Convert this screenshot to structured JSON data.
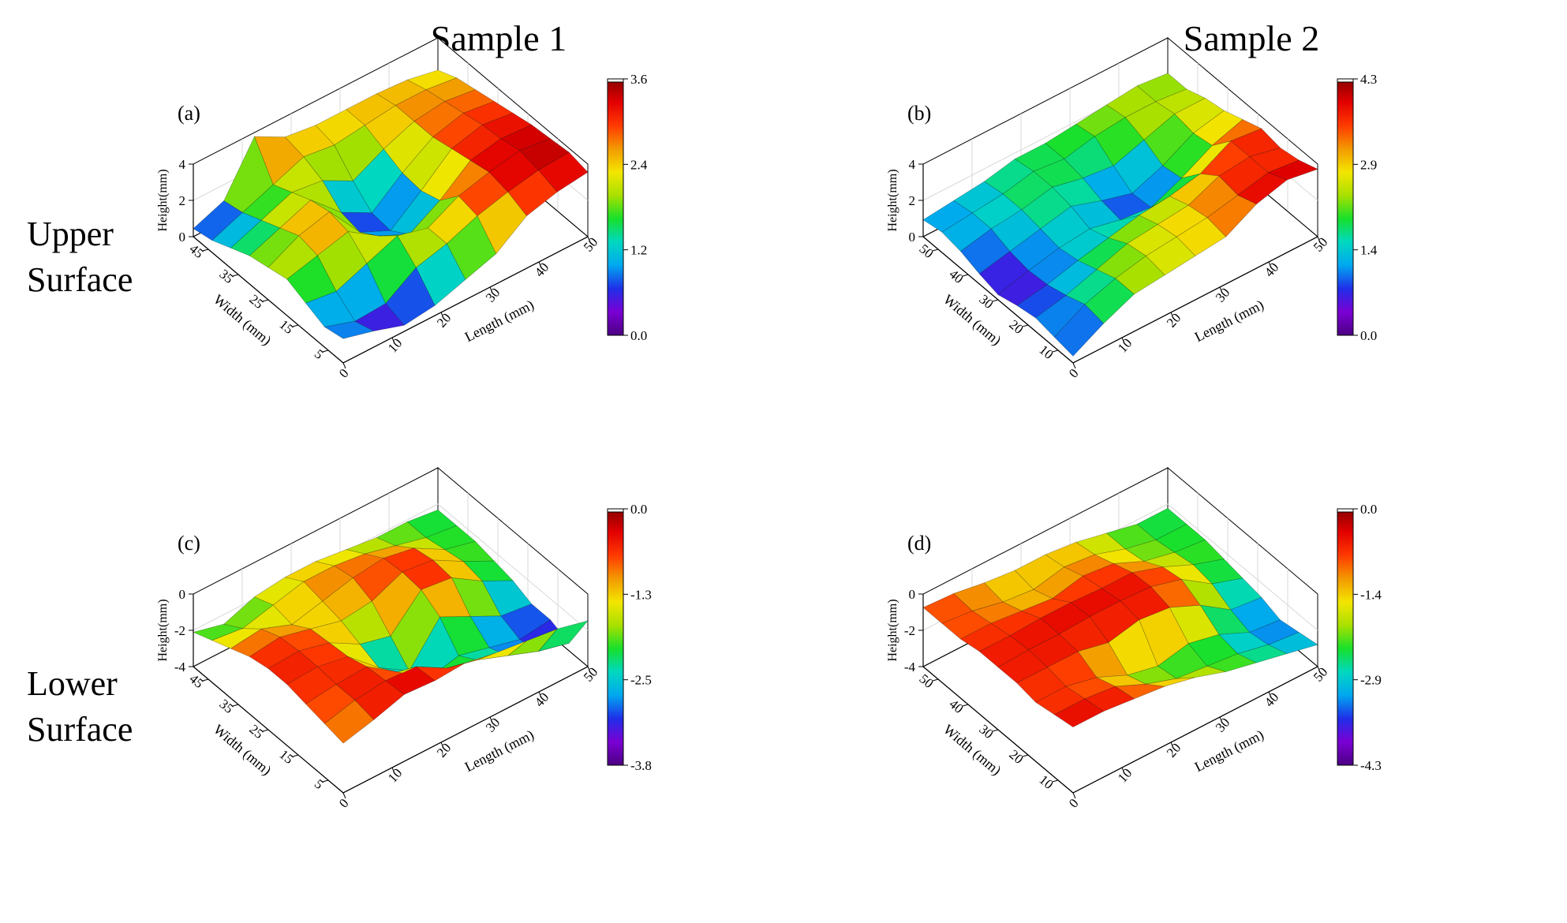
{
  "column_titles": [
    "Sample 1",
    "Sample 2"
  ],
  "row_labels": [
    [
      "Upper",
      "Surface"
    ],
    [
      "Lower",
      "Surface"
    ]
  ],
  "colormap_stops": [
    "#4b0082",
    "#7b00d4",
    "#1f2fe8",
    "#00a8f0",
    "#00d8c0",
    "#18e02a",
    "#a8e000",
    "#f3e600",
    "#f39a00",
    "#ff3a00",
    "#e20000",
    "#8a0000"
  ],
  "chart_data": [
    {
      "type": "heatmap",
      "panel_label": "(a)",
      "sample": "Sample 1",
      "surface": "Upper Surface",
      "xlabel": "Length (mm)",
      "ylabel": "Width (mm)",
      "zlabel": "Height(mm)",
      "x_ticks": [
        "0",
        "10",
        "20",
        "30",
        "40",
        "50"
      ],
      "y_ticks": [
        "5",
        "15",
        "25",
        "35",
        "45"
      ],
      "z_ticks": [
        "0",
        "2",
        "4"
      ],
      "colorbar_ticks": [
        "3.6",
        "2.4",
        "1.2",
        "0.0"
      ],
      "zlim": [
        0.0,
        3.6
      ],
      "xlim": [
        0,
        50
      ],
      "ylim": [
        0,
        50
      ],
      "height_grid": [
        [
          1.2,
          0.8,
          0.3,
          0.5,
          1.0,
          1.5,
          2.6,
          3.0,
          3.2
        ],
        [
          1.0,
          0.5,
          0.6,
          1.6,
          2.0,
          2.6,
          3.0,
          3.3,
          3.4
        ],
        [
          1.4,
          1.2,
          1.8,
          2.4,
          2.0,
          2.8,
          3.2,
          3.5,
          3.3
        ],
        [
          1.8,
          2.2,
          2.6,
          1.6,
          0.9,
          1.8,
          3.0,
          3.3,
          3.2
        ],
        [
          1.6,
          2.4,
          2.8,
          1.0,
          0.3,
          1.5,
          2.8,
          3.2,
          3.0
        ],
        [
          1.4,
          2.0,
          2.6,
          1.2,
          0.4,
          1.6,
          2.6,
          3.0,
          2.8
        ],
        [
          1.0,
          1.6,
          2.2,
          2.0,
          1.2,
          2.0,
          2.6,
          2.8,
          2.6
        ],
        [
          0.6,
          1.2,
          1.8,
          2.4,
          2.2,
          2.4,
          2.6,
          2.6,
          2.4
        ],
        [
          0.4,
          1.0,
          3.4,
          2.6,
          2.4,
          2.4,
          2.4,
          2.3,
          2.0
        ]
      ]
    },
    {
      "type": "heatmap",
      "panel_label": "(b)",
      "sample": "Sample 2",
      "surface": "Upper Surface",
      "xlabel": "Length (mm)",
      "ylabel": "Width (mm)",
      "zlabel": "Height(mm)",
      "x_ticks": [
        "0",
        "10",
        "20",
        "30",
        "40",
        "50"
      ],
      "y_ticks": [
        "10",
        "20",
        "30",
        "40",
        "50"
      ],
      "z_ticks": [
        "0",
        "2",
        "4"
      ],
      "colorbar_ticks": [
        "4.3",
        "2.9",
        "1.4",
        "0.0"
      ],
      "zlim": [
        0.0,
        4.3
      ],
      "xlim": [
        0,
        50
      ],
      "ylim": [
        0,
        50
      ],
      "height_grid": [
        [
          0.4,
          1.4,
          2.2,
          2.4,
          2.6,
          2.8,
          3.8,
          4.3,
          4.0
        ],
        [
          0.6,
          1.6,
          2.2,
          2.6,
          2.8,
          3.0,
          3.4,
          3.8,
          3.6
        ],
        [
          0.8,
          1.2,
          1.8,
          2.4,
          2.6,
          2.8,
          3.6,
          3.8,
          3.4
        ],
        [
          0.6,
          0.9,
          1.4,
          1.8,
          2.2,
          2.4,
          2.8,
          3.8,
          3.6
        ],
        [
          0.3,
          0.8,
          1.2,
          1.4,
          1.0,
          0.8,
          1.6,
          2.6,
          3.2
        ],
        [
          0.6,
          1.0,
          1.4,
          1.8,
          1.2,
          0.7,
          1.4,
          2.4,
          2.8
        ],
        [
          1.0,
          1.4,
          1.6,
          2.0,
          1.6,
          1.4,
          2.0,
          2.6,
          2.6
        ],
        [
          1.2,
          1.4,
          1.6,
          2.0,
          1.8,
          2.2,
          2.4,
          2.4,
          2.2
        ],
        [
          1.0,
          1.2,
          1.4,
          1.8,
          1.8,
          2.0,
          2.2,
          2.4,
          2.2
        ]
      ]
    },
    {
      "type": "heatmap",
      "panel_label": "(c)",
      "sample": "Sample 1",
      "surface": "Lower Surface",
      "xlabel": "Length (mm)",
      "ylabel": "Width (mm)",
      "zlabel": "Height(mm)",
      "x_ticks": [
        "0",
        "10",
        "20",
        "30",
        "40",
        "50"
      ],
      "y_ticks": [
        "5",
        "15",
        "25",
        "35",
        "45"
      ],
      "z_ticks": [
        "-4",
        "-2",
        "0"
      ],
      "colorbar_ticks": [
        "0.0",
        "-1.3",
        "-2.5",
        "-3.8"
      ],
      "zlim": [
        -3.8,
        0.0
      ],
      "xlim": [
        0,
        50
      ],
      "ylim": [
        0,
        50
      ],
      "height_grid": [
        [
          -1.2,
          -0.8,
          -0.3,
          -0.4,
          -0.3,
          -0.6,
          -0.8,
          -1.0,
          -1.4
        ],
        [
          -1.0,
          -0.6,
          -0.4,
          -0.5,
          -1.4,
          -1.8,
          -2.4,
          -3.0,
          -3.4
        ],
        [
          -0.8,
          -0.6,
          -0.5,
          -1.6,
          -2.8,
          -2.4,
          -2.8,
          -3.2,
          -3.0
        ],
        [
          -0.6,
          -0.5,
          -0.8,
          -2.2,
          -3.2,
          -1.2,
          -2.0,
          -2.8,
          -3.0
        ],
        [
          -0.6,
          -0.5,
          -0.9,
          -1.8,
          -2.2,
          -0.6,
          -0.8,
          -1.8,
          -2.6
        ],
        [
          -0.8,
          -0.6,
          -1.0,
          -1.4,
          -1.2,
          -0.5,
          -0.7,
          -1.6,
          -2.4
        ],
        [
          -1.2,
          -1.0,
          -1.6,
          -1.2,
          -0.8,
          -0.6,
          -0.9,
          -1.8,
          -2.2
        ],
        [
          -1.6,
          -1.8,
          -1.4,
          -1.0,
          -1.0,
          -1.2,
          -1.6,
          -2.0,
          -2.2
        ],
        [
          -2.0,
          -2.4,
          -1.8,
          -1.6,
          -1.6,
          -1.8,
          -2.0,
          -2.0,
          -2.2
        ]
      ]
    },
    {
      "type": "heatmap",
      "panel_label": "(d)",
      "sample": "Sample 2",
      "surface": "Lower Surface",
      "xlabel": "Length (mm)",
      "ylabel": "Width (mm)",
      "zlabel": "Height(mm)",
      "x_ticks": [
        "0",
        "10",
        "20",
        "30",
        "40",
        "50"
      ],
      "y_ticks": [
        "10",
        "20",
        "30",
        "40",
        "50"
      ],
      "z_ticks": [
        "-4",
        "-2",
        "0"
      ],
      "colorbar_ticks": [
        "0.0",
        "-1.4",
        "-2.9",
        "-4.3"
      ],
      "zlim": [
        -4.3,
        0.0
      ],
      "xlim": [
        0,
        50
      ],
      "ylim": [
        0,
        50
      ],
      "height_grid": [
        [
          -0.4,
          -0.4,
          -0.6,
          -0.8,
          -1.2,
          -1.8,
          -2.2,
          -2.6,
          -3.0
        ],
        [
          -0.6,
          -0.6,
          -0.8,
          -1.6,
          -2.2,
          -2.4,
          -2.6,
          -3.0,
          -3.2
        ],
        [
          -0.8,
          -0.8,
          -1.2,
          -2.0,
          -2.4,
          -2.0,
          -2.4,
          -3.2,
          -3.4
        ],
        [
          -0.6,
          -0.6,
          -0.6,
          -1.0,
          -0.6,
          -0.8,
          -1.6,
          -2.8,
          -3.0
        ],
        [
          -0.6,
          -0.5,
          -0.5,
          -0.4,
          -0.4,
          -0.5,
          -1.0,
          -2.2,
          -2.8
        ],
        [
          -0.6,
          -0.6,
          -0.5,
          -0.5,
          -0.6,
          -0.6,
          -1.2,
          -2.0,
          -2.6
        ],
        [
          -0.8,
          -0.8,
          -1.0,
          -1.2,
          -0.8,
          -1.0,
          -1.8,
          -2.2,
          -2.4
        ],
        [
          -0.8,
          -1.0,
          -1.4,
          -1.6,
          -1.2,
          -1.4,
          -2.0,
          -2.4,
          -2.4
        ],
        [
          -0.8,
          -0.9,
          -1.2,
          -1.4,
          -1.4,
          -1.6,
          -2.0,
          -2.4,
          -2.4
        ]
      ]
    }
  ]
}
